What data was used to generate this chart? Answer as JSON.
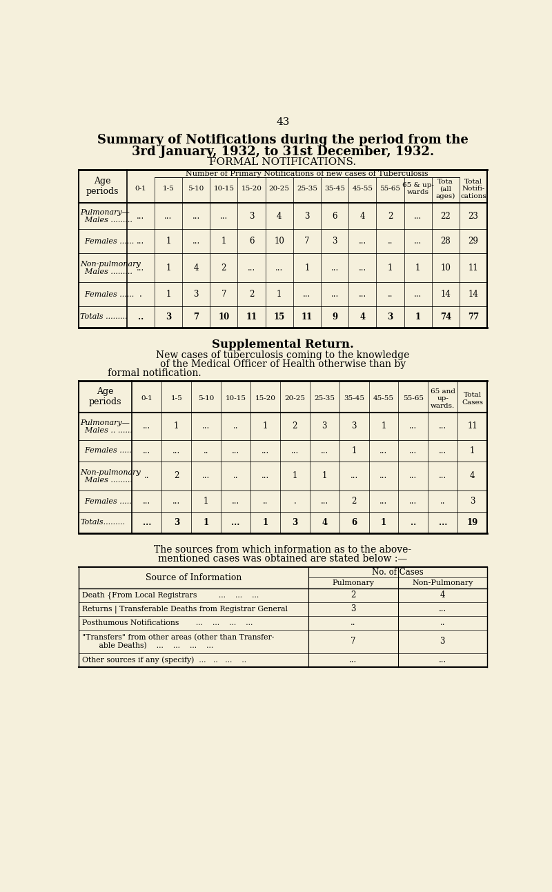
{
  "bg_color": "#f5f0dc",
  "page_number": "43",
  "title_line1": "Summary of Notifications during the period from the",
  "title_line2": "3rd January, 1932, to 31st December, 1932.",
  "title_line3": "FORMAL NOTIFICATIONS.",
  "table1_header_span": "Number of Primary Notifications of new cases of Tuberculosis",
  "table1_col_headers": [
    "0-1",
    "1-5",
    "5-10",
    "10-15",
    "15-20",
    "20-25",
    "25-35",
    "35-45",
    "45-55",
    "55-65",
    "65 & up-\nwards",
    "Tota\n(all\nages)",
    "Total\nNotifi-\ncations"
  ],
  "table1_data": [
    [
      "...",
      "...",
      "...",
      "...",
      "3",
      "4",
      "3",
      "6",
      "4",
      "2",
      "...",
      "22",
      "23"
    ],
    [
      "...",
      "1",
      "...",
      "1",
      "6",
      "10",
      "7",
      "3",
      "...",
      "..",
      "...",
      "28",
      "29"
    ],
    [
      "...",
      "1",
      "4",
      "2",
      "...",
      "...",
      "1",
      "...",
      "...",
      "1",
      "1",
      "10",
      "11"
    ],
    [
      ".",
      "1",
      "3",
      "7",
      "2",
      "1",
      "...",
      "...",
      "...",
      "..",
      "...",
      "14",
      "14"
    ],
    [
      "..",
      "3",
      "7",
      "10",
      "11",
      "15",
      "11",
      "9",
      "4",
      "3",
      "1",
      "74",
      "77"
    ]
  ],
  "supp_title": "Supplemental Return.",
  "supp_desc_line1": "New cases of tuberculosis coming to the knowledge",
  "supp_desc_line2": "of the Medical Officer of Health otherwise than by",
  "supp_desc_line3": "formal notification.",
  "table2_col_headers": [
    "0-1",
    "1-5",
    "5-10",
    "10-15",
    "15-20",
    "20-25",
    "25-35",
    "35-45",
    "45-55",
    "55-65",
    "65 and\nup-\nwards.",
    "Total\nCases"
  ],
  "table2_data": [
    [
      "...",
      "1",
      "...",
      "..",
      "1",
      "2",
      "3",
      "3",
      "1",
      "...",
      "...",
      "11"
    ],
    [
      "...",
      "...",
      "..",
      "...",
      "...",
      "...",
      "...",
      "1",
      "...",
      "...",
      "...",
      "1"
    ],
    [
      "..",
      "2",
      "...",
      "..",
      "...",
      "1",
      "1",
      "...",
      "...",
      "...",
      "...",
      "4"
    ],
    [
      "...",
      "...",
      "1",
      "...",
      "..",
      ".",
      "...",
      "2",
      "...",
      "...",
      "..",
      "3"
    ],
    [
      "...",
      "3",
      "1",
      "...",
      "1",
      "3",
      "4",
      "6",
      "1",
      "..",
      "...",
      "19"
    ]
  ],
  "sources_rows": [
    [
      "Death {From Local Registrars         ...    ...    ...",
      "2",
      "4"
    ],
    [
      "Returns | Transferable Deaths from Registrar General",
      "3",
      "..."
    ],
    [
      "Posthumous Notifications       ...    ...    ...    ...",
      "..",
      ".."
    ],
    [
      "\"Transfers\" from other areas (other than Transfer-\n       able Deaths)    ...    ...    ...    ...",
      "7",
      "3"
    ],
    [
      "Other sources if any (specify)  ...   ..   ...    ..",
      "...",
      "..."
    ]
  ]
}
